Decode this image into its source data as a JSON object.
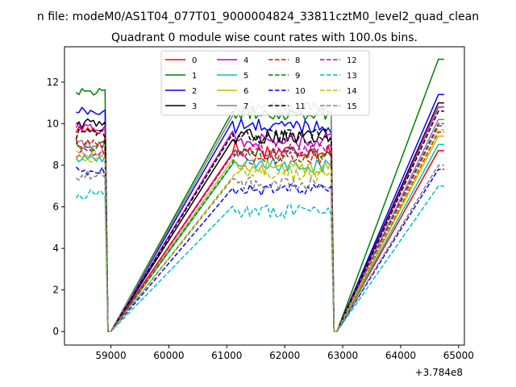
{
  "chart_data": {
    "type": "line",
    "suptitle": "n file: modeM0/AS1T04_077T01_9000004824_33811cztM0_level2_quad_clean",
    "title": "Quadrant 0 module wise count rates with 100.0s bins.",
    "xlabel": "",
    "ylabel": "",
    "x_offset_label": "+3.784e8",
    "xlim": [
      58200,
      65100
    ],
    "ylim": [
      -0.65,
      13.7
    ],
    "x_ticks": [
      59000,
      60000,
      61000,
      62000,
      63000,
      64000,
      65000
    ],
    "x_tick_labels": [
      "59000",
      "60000",
      "61000",
      "62000",
      "63000",
      "64000",
      "65000"
    ],
    "y_ticks": [
      0,
      2,
      4,
      6,
      8,
      10,
      12
    ],
    "y_tick_labels": [
      "0",
      "2",
      "4",
      "6",
      "8",
      "10",
      "12"
    ],
    "legend": {
      "placement": "upper-center",
      "columns": 4,
      "entries": [
        "0",
        "1",
        "2",
        "3",
        "4",
        "5",
        "6",
        "7",
        "8",
        "9",
        "10",
        "11",
        "12",
        "13",
        "14",
        "15"
      ]
    },
    "series": [
      {
        "name": "0",
        "color": "#ff0000",
        "style": "solid",
        "levels": [
          9.7,
          8.9,
          8.7,
          0.0,
          8.7
        ]
      },
      {
        "name": "1",
        "color": "#008000",
        "style": "solid",
        "levels": [
          11.6,
          10.6,
          10.5,
          0.0,
          13.1
        ]
      },
      {
        "name": "2",
        "color": "#0000ff",
        "style": "solid",
        "levels": [
          10.6,
          9.8,
          9.9,
          0.0,
          11.4
        ]
      },
      {
        "name": "3",
        "color": "#000000",
        "style": "solid",
        "levels": [
          10.0,
          9.3,
          9.4,
          0.0,
          11.0
        ]
      },
      {
        "name": "4",
        "color": "#bf00bf",
        "style": "solid",
        "levels": [
          9.8,
          9.4,
          9.2,
          0.0,
          10.8
        ]
      },
      {
        "name": "5",
        "color": "#00bfbf",
        "style": "solid",
        "levels": [
          8.3,
          8.2,
          8.0,
          0.0,
          9.0
        ]
      },
      {
        "name": "6",
        "color": "#bfbf00",
        "style": "solid",
        "levels": [
          8.6,
          8.1,
          7.9,
          0.0,
          9.4
        ]
      },
      {
        "name": "7",
        "color": "#808080",
        "style": "solid",
        "levels": [
          9.0,
          10.6,
          10.7,
          0.0,
          10.2
        ]
      },
      {
        "name": "8",
        "color": "#ff0000",
        "style": "dashed",
        "levels": [
          9.1,
          8.5,
          8.4,
          0.0,
          9.6
        ]
      },
      {
        "name": "9",
        "color": "#008000",
        "style": "dashed",
        "levels": [
          8.9,
          8.4,
          8.5,
          0.0,
          9.9
        ]
      },
      {
        "name": "10",
        "color": "#0000ff",
        "style": "dashed",
        "levels": [
          7.7,
          6.9,
          6.8,
          0.0,
          7.8
        ]
      },
      {
        "name": "11",
        "color": "#000000",
        "style": "dashed",
        "levels": [
          9.5,
          9.2,
          9.4,
          0.0,
          10.6
        ]
      },
      {
        "name": "12",
        "color": "#bf00bf",
        "style": "dashed",
        "levels": [
          8.6,
          8.6,
          8.7,
          0.0,
          10.0
        ]
      },
      {
        "name": "13",
        "color": "#00bfbf",
        "style": "dashed",
        "levels": [
          6.6,
          5.8,
          5.8,
          0.0,
          7.0
        ]
      },
      {
        "name": "14",
        "color": "#bfbf00",
        "style": "dashed",
        "levels": [
          8.4,
          7.6,
          7.6,
          0.0,
          9.7
        ]
      },
      {
        "name": "15",
        "color": "#808080",
        "style": "dashed",
        "levels": [
          7.5,
          7.2,
          7.1,
          0.0,
          8.0
        ]
      }
    ],
    "time_segments": [
      {
        "start": 58400,
        "end": 58900,
        "level_index": 0
      },
      {
        "start": 58950,
        "end": 59000,
        "level_index": 3
      },
      {
        "start": 61100,
        "end": 61150,
        "level_index": 1
      },
      {
        "start": 61200,
        "end": 62800,
        "level_index": 2
      },
      {
        "start": 62850,
        "end": 62900,
        "level_index": 3
      },
      {
        "start": 64650,
        "end": 64750,
        "level_index": 4
      }
    ]
  }
}
